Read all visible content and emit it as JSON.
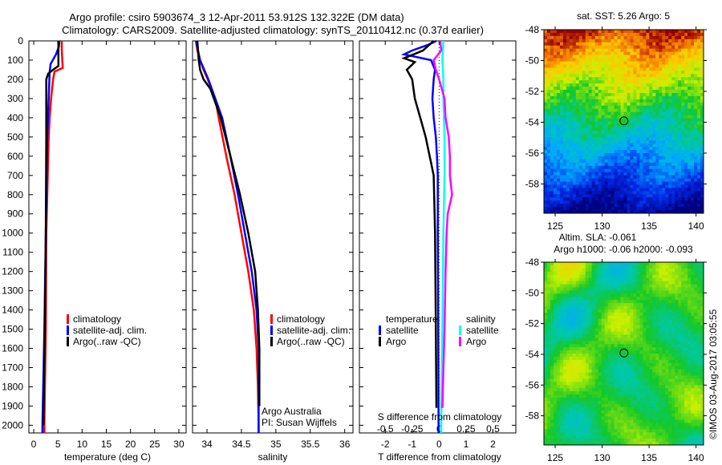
{
  "title": {
    "line1": "Argo profile: csiro 5903674_3 12-Apr-2011 53.912S 132.322E (DM data)",
    "line2": "Climatology: CARS2009. Satellite-adjusted climatology: synTS_20110412.nc (0.37d earlier)"
  },
  "watermark": "©IMOS 03-Aug-2017 03:05:55",
  "colors": {
    "clim": "#ff0000",
    "sat": "#0000ff",
    "argo": "#000000",
    "sal_sat": "#00ffff",
    "sal_argo": "#ff00ff"
  },
  "chart_data": [
    {
      "type": "line",
      "name": "temperature",
      "xlabel": "temperature (deg C)",
      "xlim": [
        -1,
        31.5
      ],
      "ylim": [
        0,
        2040
      ],
      "y_reversed": true,
      "xticks": [
        0,
        5,
        10,
        15,
        20,
        25,
        30
      ],
      "yticks": [
        0,
        100,
        200,
        300,
        400,
        500,
        600,
        700,
        800,
        900,
        1000,
        1100,
        1200,
        1300,
        1400,
        1500,
        1600,
        1700,
        1800,
        1900,
        2000
      ],
      "legend": [
        "climatology",
        "satellite-adj. clim.",
        "Argo(..raw -QC)"
      ],
      "series": [
        {
          "name": "climatology",
          "color": "#ff0000",
          "depth": [
            0,
            50,
            140,
            160,
            200,
            300,
            400,
            500,
            1000,
            1500,
            2000,
            2040
          ],
          "values": [
            5.8,
            5.8,
            6.0,
            4.3,
            4.0,
            3.6,
            3.3,
            3.1,
            2.6,
            2.5,
            2.2,
            2.2
          ]
        },
        {
          "name": "satellite-adj. clim.",
          "color": "#0000ff",
          "depth": [
            0,
            30,
            70,
            120,
            160,
            300,
            500,
            1000,
            1500,
            2000,
            2040
          ],
          "values": [
            5.3,
            5.2,
            4.6,
            3.5,
            3.3,
            3.1,
            2.8,
            2.5,
            2.2,
            1.8,
            1.8
          ]
        },
        {
          "name": "Argo(..raw -QC)",
          "color": "#000000",
          "depth": [
            0,
            130,
            150,
            170,
            200,
            500,
            1000,
            1500,
            2000
          ],
          "values": [
            5.1,
            5.1,
            4.0,
            3.0,
            2.6,
            2.6,
            2.5,
            2.3,
            2.0
          ]
        }
      ]
    },
    {
      "type": "line",
      "name": "salinity",
      "xlabel": "salinity",
      "xlim": [
        33.79,
        36.12
      ],
      "ylim": [
        0,
        2040
      ],
      "y_reversed": true,
      "xticks": [
        34,
        34.5,
        35,
        35.5,
        36
      ],
      "legend": [
        "climatology",
        "satellite-adj. clim.",
        "Argo(..raw -QC)"
      ],
      "annotation": [
        "Argo Australia",
        "PI: Susan Wijffels"
      ],
      "series": [
        {
          "name": "climatology",
          "color": "#ff0000",
          "depth": [
            0,
            50,
            100,
            150,
            200,
            300,
            400,
            600,
            800,
            1000,
            1200,
            1400,
            1600,
            1800,
            2000,
            2040
          ],
          "values": [
            33.84,
            33.86,
            33.9,
            33.95,
            34.01,
            34.12,
            34.17,
            34.28,
            34.4,
            34.5,
            34.6,
            34.68,
            34.72,
            34.74,
            34.75,
            34.75
          ]
        },
        {
          "name": "satellite-adj. clim.",
          "color": "#0000ff",
          "depth": [
            0,
            100,
            200,
            300,
            400,
            600,
            800,
            1000,
            1200,
            1400,
            1600,
            2000,
            2040
          ],
          "values": [
            33.84,
            33.9,
            34.02,
            34.12,
            34.22,
            34.34,
            34.45,
            34.55,
            34.65,
            34.72,
            34.75,
            34.75,
            34.75
          ]
        },
        {
          "name": "Argo(..raw -QC)",
          "color": "#000000",
          "depth": [
            0,
            100,
            150,
            200,
            250,
            300,
            400,
            600,
            800,
            1000,
            1200,
            1400,
            1600,
            1900
          ],
          "values": [
            33.86,
            33.88,
            33.9,
            33.95,
            34.05,
            34.1,
            34.2,
            34.34,
            34.48,
            34.6,
            34.7,
            34.74,
            34.76,
            34.76
          ]
        }
      ]
    },
    {
      "type": "line",
      "name": "differences",
      "xlabel": "T difference from climatology",
      "xlabel2": "S difference from climatology",
      "xlim": [
        -2.96,
        2.85
      ],
      "xticks": [
        -2,
        -1,
        0,
        1,
        2
      ],
      "s_xticks": [
        -0.5,
        -0.25,
        0,
        0.25,
        0.5
      ],
      "s_xtick_labels": [
        "-0.5",
        "-0.25",
        "0",
        "0.25",
        "0.5"
      ],
      "ylim": [
        0,
        2040
      ],
      "y_reversed": true,
      "legend_temp": {
        "title": "temperature",
        "items": [
          "satellite",
          "Argo"
        ]
      },
      "legend_sal": {
        "title": "salinity",
        "items": [
          "satellite",
          "Argo"
        ]
      },
      "series": [
        {
          "name": "T satellite",
          "var": "T",
          "color": "#0000ff",
          "depth": [
            0,
            20,
            50,
            70,
            100,
            150,
            200,
            300,
            400,
            500,
            600,
            700,
            1000,
            1500,
            2000,
            2040
          ],
          "values": [
            -0.1,
            -0.4,
            -1.0,
            -1.3,
            -0.3,
            -0.15,
            -0.2,
            -0.25,
            -0.2,
            -0.12,
            -0.08,
            -0.05,
            -0.05,
            -0.03,
            -0.02,
            -0.02
          ]
        },
        {
          "name": "T Argo",
          "var": "T",
          "color": "#000000",
          "depth": [
            0,
            50,
            90,
            110,
            150,
            200,
            300,
            400,
            500,
            600,
            700,
            1000,
            1500,
            1910
          ],
          "values": [
            -0.2,
            -0.6,
            -1.3,
            -0.9,
            -1.2,
            -1.0,
            -0.9,
            -0.7,
            -0.5,
            -0.35,
            -0.2,
            -0.15,
            -0.12,
            -0.1
          ]
        },
        {
          "name": "S satellite",
          "var": "S",
          "color": "#00ffff",
          "depth": [
            0,
            100,
            200,
            300,
            500,
            700,
            1000,
            1500,
            2000,
            2040
          ],
          "values": [
            0.04,
            0.03,
            0.04,
            0.04,
            0.05,
            0.05,
            0.04,
            0.03,
            0.02,
            0.02
          ]
        },
        {
          "name": "S Argo",
          "var": "S",
          "color": "#ff00ff",
          "depth": [
            0,
            50,
            100,
            150,
            200,
            300,
            400,
            500,
            600,
            700,
            800,
            900,
            1000,
            1200,
            1500,
            1910
          ],
          "values": [
            0.01,
            0.02,
            -0.05,
            -0.03,
            0.0,
            0.05,
            0.06,
            0.09,
            0.1,
            0.1,
            0.12,
            0.08,
            0.07,
            0.06,
            0.05,
            0.03
          ]
        }
      ]
    },
    {
      "type": "heatmap",
      "name": "sst-map",
      "title": "sat. SST: 5.26 Argo: 5",
      "xlim": [
        123.8,
        140.8
      ],
      "ylim": [
        -59.9,
        -48
      ],
      "xticks": [
        125,
        130,
        135,
        140
      ],
      "yticks": [
        -48,
        -50,
        -52,
        -54,
        -56,
        -58
      ],
      "marker": {
        "lon": 132.322,
        "lat": -53.912
      }
    },
    {
      "type": "heatmap",
      "name": "sla-map",
      "title": "Altim. SLA: -0.061",
      "subtitle": "Argo h1000: -0.06 h2000: -0.093",
      "xlim": [
        123.8,
        140.8
      ],
      "ylim": [
        -59.9,
        -48
      ],
      "xticks": [
        125,
        130,
        135,
        140
      ],
      "yticks": [
        -48,
        -50,
        -52,
        -54,
        -56,
        -58
      ],
      "marker": {
        "lon": 132.322,
        "lat": -53.912
      }
    }
  ]
}
